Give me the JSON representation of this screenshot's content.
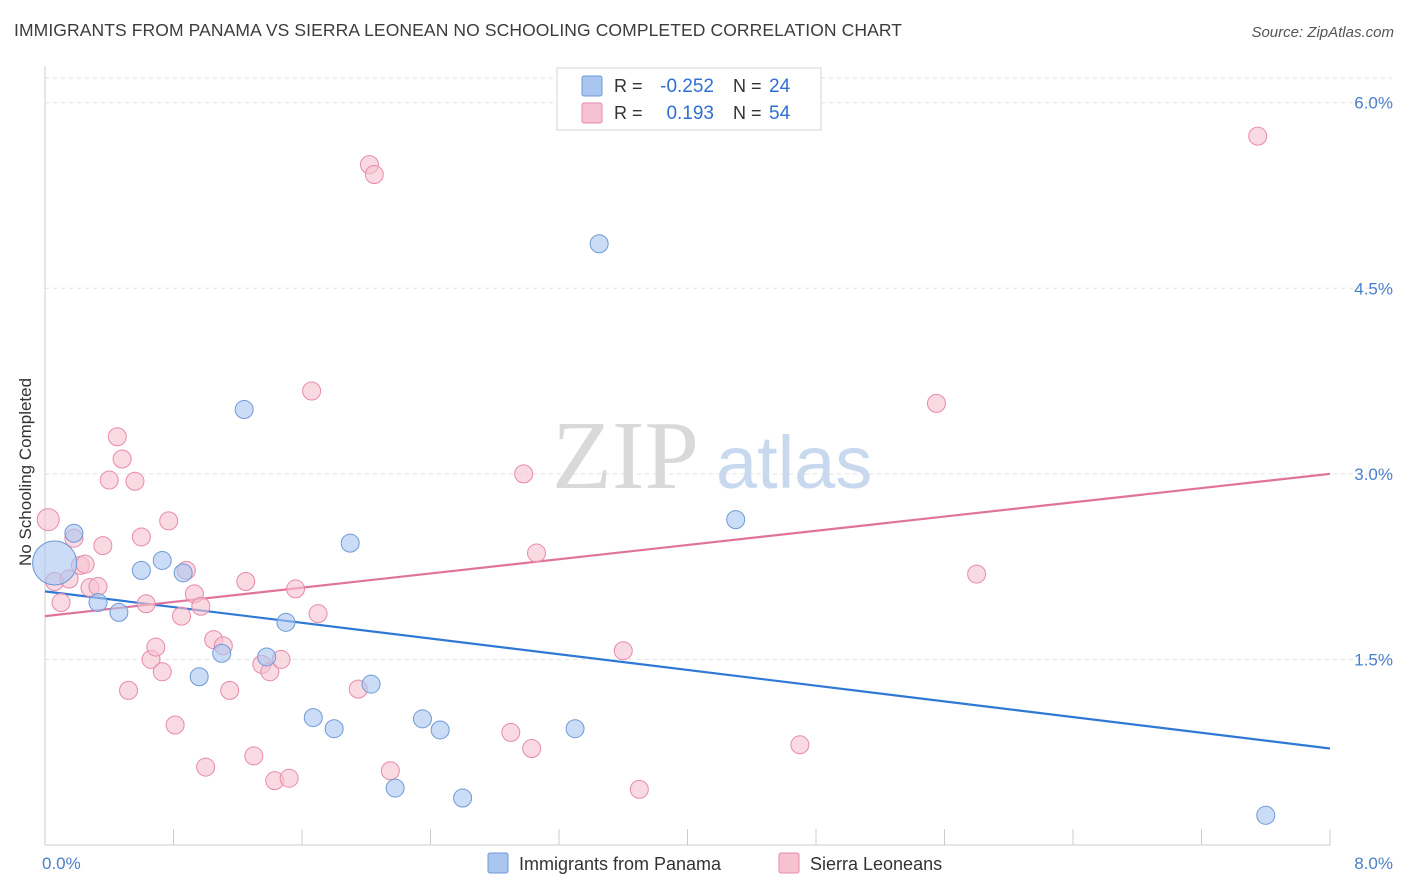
{
  "title": "IMMIGRANTS FROM PANAMA VS SIERRA LEONEAN NO SCHOOLING COMPLETED CORRELATION CHART",
  "source": "Source: ZipAtlas.com",
  "watermark": {
    "zip": "ZIP",
    "atlas": "atlas"
  },
  "chart_data": {
    "type": "scatter",
    "xlabel": "",
    "ylabel": "No Schooling Completed",
    "xlim": [
      0,
      8
    ],
    "ylim": [
      0,
      6.2
    ],
    "x_tick_labels": [
      "0.0%",
      "8.0%"
    ],
    "y_ticks": [
      1.5,
      3.0,
      4.5,
      6.0
    ],
    "y_tick_labels": [
      "1.5%",
      "3.0%",
      "4.5%",
      "6.0%"
    ],
    "grid": true,
    "legend": {
      "position": "top-center",
      "rows": [
        {
          "r_label": "R =",
          "r_value": "-0.252",
          "n_label": "N =",
          "n_value": "24"
        },
        {
          "r_label": "R =",
          "r_value": "0.193",
          "n_label": "N =",
          "n_value": "54"
        }
      ]
    },
    "series": [
      {
        "name": "Immigrants from Panama",
        "color": "#a9c6f0",
        "edge": "#6f9ad6",
        "line_color": "#2f78d6",
        "trend": {
          "x": [
            0,
            8
          ],
          "y": [
            2.05,
            0.78
          ]
        },
        "points": [
          [
            0.06,
            2.28,
            22
          ],
          [
            0.18,
            2.52,
            9
          ],
          [
            0.33,
            1.96,
            9
          ],
          [
            0.46,
            1.88,
            9
          ],
          [
            0.6,
            2.22,
            9
          ],
          [
            0.73,
            2.3,
            9
          ],
          [
            0.86,
            2.2,
            9
          ],
          [
            0.96,
            1.36,
            9
          ],
          [
            1.1,
            1.55,
            9
          ],
          [
            1.24,
            3.52,
            9
          ],
          [
            1.38,
            1.52,
            9
          ],
          [
            1.5,
            1.8,
            9
          ],
          [
            1.67,
            1.03,
            9
          ],
          [
            1.8,
            0.94,
            9
          ],
          [
            1.9,
            2.44,
            9
          ],
          [
            2.03,
            1.3,
            9
          ],
          [
            2.18,
            0.46,
            9
          ],
          [
            2.35,
            1.02,
            9
          ],
          [
            2.46,
            0.93,
            9
          ],
          [
            2.6,
            0.38,
            9
          ],
          [
            3.3,
            0.94,
            9
          ],
          [
            3.45,
            4.86,
            9
          ],
          [
            4.3,
            2.63,
            9
          ],
          [
            7.6,
            0.24,
            9
          ]
        ]
      },
      {
        "name": "Sierra Leoneans",
        "color": "#f6c1d1",
        "edge": "#e88aaa",
        "line_color": "#e0739c",
        "trend": {
          "x": [
            0,
            8
          ],
          "y": [
            1.85,
            3.0
          ]
        },
        "points": [
          [
            0.02,
            2.63,
            11
          ],
          [
            0.06,
            2.13,
            9
          ],
          [
            0.1,
            1.96,
            9
          ],
          [
            0.15,
            2.15,
            9
          ],
          [
            0.18,
            2.48,
            9
          ],
          [
            0.22,
            2.26,
            9
          ],
          [
            0.25,
            2.27,
            9
          ],
          [
            0.28,
            2.08,
            9
          ],
          [
            0.33,
            2.09,
            9
          ],
          [
            0.36,
            2.42,
            9
          ],
          [
            0.4,
            2.95,
            9
          ],
          [
            0.45,
            3.3,
            9
          ],
          [
            0.48,
            3.12,
            9
          ],
          [
            0.52,
            1.25,
            9
          ],
          [
            0.56,
            2.94,
            9
          ],
          [
            0.6,
            2.49,
            9
          ],
          [
            0.63,
            1.95,
            9
          ],
          [
            0.66,
            1.5,
            9
          ],
          [
            0.69,
            1.6,
            9
          ],
          [
            0.73,
            1.4,
            9
          ],
          [
            0.77,
            2.62,
            9
          ],
          [
            0.81,
            0.97,
            9
          ],
          [
            0.85,
            1.85,
            9
          ],
          [
            0.88,
            2.22,
            9
          ],
          [
            0.93,
            2.03,
            9
          ],
          [
            0.97,
            1.93,
            9
          ],
          [
            1.0,
            0.63,
            9
          ],
          [
            1.05,
            1.66,
            9
          ],
          [
            1.11,
            1.61,
            9
          ],
          [
            1.15,
            1.25,
            9
          ],
          [
            1.25,
            2.13,
            9
          ],
          [
            1.3,
            0.72,
            9
          ],
          [
            1.35,
            1.46,
            9
          ],
          [
            1.4,
            1.4,
            9
          ],
          [
            1.43,
            0.52,
            9
          ],
          [
            1.47,
            1.5,
            9
          ],
          [
            1.52,
            0.54,
            9
          ],
          [
            1.56,
            2.07,
            9
          ],
          [
            1.66,
            3.67,
            9
          ],
          [
            1.7,
            1.87,
            9
          ],
          [
            1.95,
            1.26,
            9
          ],
          [
            2.02,
            5.5,
            9
          ],
          [
            2.05,
            5.42,
            9
          ],
          [
            2.15,
            0.6,
            9
          ],
          [
            2.9,
            0.91,
            9
          ],
          [
            2.98,
            3.0,
            9
          ],
          [
            3.03,
            0.78,
            9
          ],
          [
            3.06,
            2.36,
            9
          ],
          [
            3.6,
            1.57,
            9
          ],
          [
            3.7,
            0.45,
            9
          ],
          [
            4.7,
            0.81,
            9
          ],
          [
            5.55,
            3.57,
            9
          ],
          [
            5.8,
            2.19,
            9
          ],
          [
            7.55,
            5.73,
            9
          ]
        ]
      }
    ]
  }
}
